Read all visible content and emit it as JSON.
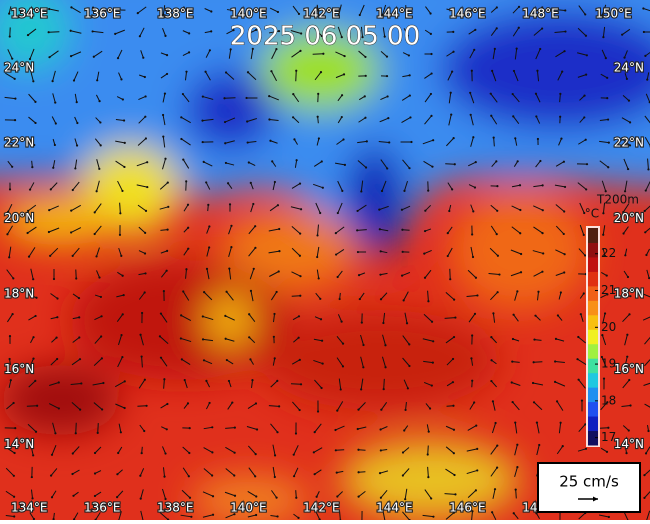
{
  "title": "2025 06 05 00",
  "lon_range": [
    133.2,
    151.0
  ],
  "lat_range": [
    12.0,
    25.8
  ],
  "lon_ticks": [
    {
      "value": 134,
      "label": "134°E"
    },
    {
      "value": 136,
      "label": "136°E"
    },
    {
      "value": 138,
      "label": "138°E"
    },
    {
      "value": 140,
      "label": "140°E"
    },
    {
      "value": 142,
      "label": "142°E"
    },
    {
      "value": 144,
      "label": "144°E"
    },
    {
      "value": 146,
      "label": "146°E"
    },
    {
      "value": 148,
      "label": "148°E"
    },
    {
      "value": 150,
      "label": "150°E"
    }
  ],
  "lat_ticks": [
    {
      "value": 24,
      "label": "24°N"
    },
    {
      "value": 22,
      "label": "22°N"
    },
    {
      "value": 20,
      "label": "20°N"
    },
    {
      "value": 18,
      "label": "18°N"
    },
    {
      "value": 16,
      "label": "16°N"
    },
    {
      "value": 14,
      "label": "14°N"
    }
  ],
  "colorbar": {
    "label": "T200m",
    "unit": "°C",
    "range": [
      16.8,
      22.7
    ],
    "ticks": [
      17,
      18,
      19,
      20,
      21,
      22
    ]
  },
  "scale_label": "25 cm/s"
}
